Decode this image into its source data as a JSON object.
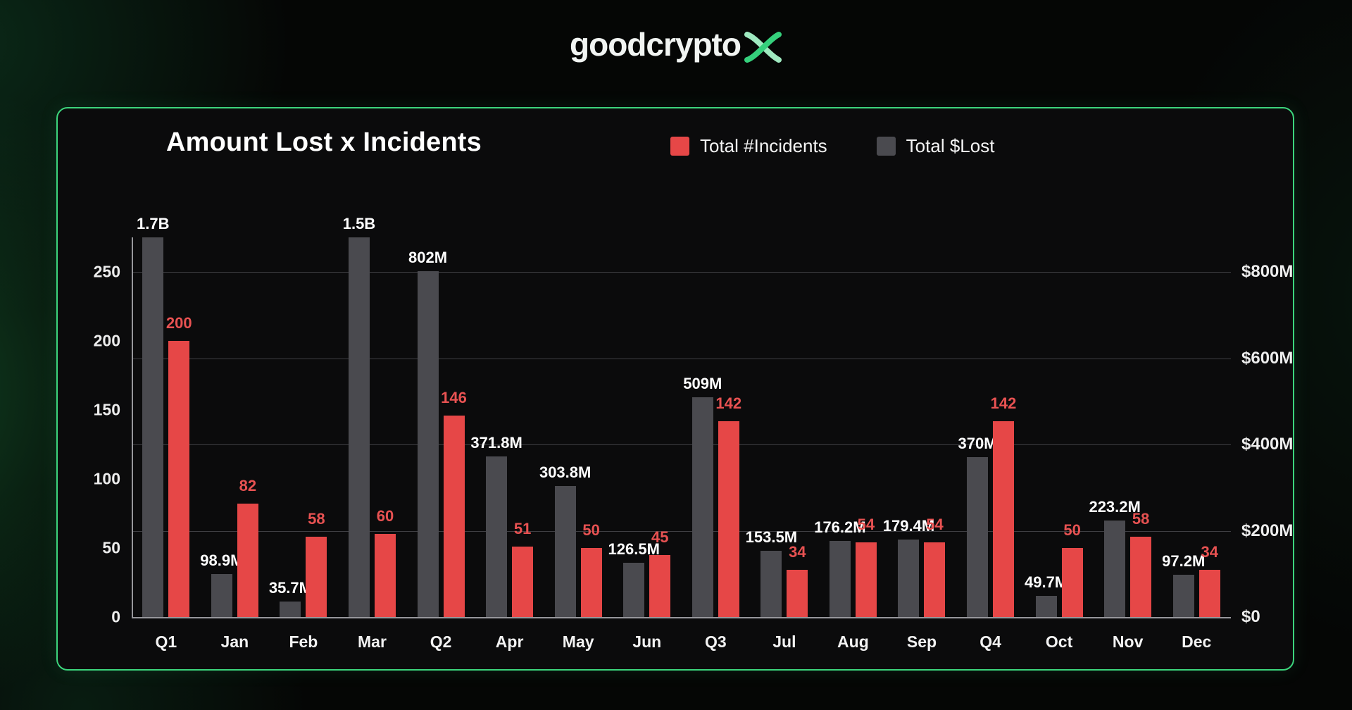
{
  "brand": {
    "wordmark": "goodcrypto",
    "x_icon": "brand-x-icon",
    "accent_green": "#3cd57c"
  },
  "chart_data": {
    "type": "bar",
    "title": "Amount Lost x Incidents",
    "categories": [
      "Q1",
      "Jan",
      "Feb",
      "Mar",
      "Q2",
      "Apr",
      "May",
      "Jun",
      "Q3",
      "Jul",
      "Aug",
      "Sep",
      "Q4",
      "Oct",
      "Nov",
      "Dec"
    ],
    "series": [
      {
        "name": "Total #Incidents",
        "axis": "left",
        "color": "#e64747",
        "values": [
          200,
          82,
          58,
          60,
          146,
          51,
          50,
          45,
          142,
          34,
          54,
          54,
          142,
          50,
          58,
          34
        ]
      },
      {
        "name": "Total $Lost",
        "axis": "right",
        "color": "#4a4a4f",
        "values_musd": [
          1700,
          98.9,
          35.7,
          1500,
          802,
          371.8,
          303.8,
          126.5,
          509,
          153.5,
          176.2,
          179.4,
          370,
          49.7,
          223.2,
          97.2
        ],
        "labels": [
          "1.7B",
          "98.9M",
          "35.7M",
          "1.5B",
          "802M",
          "371.8M",
          "303.8M",
          "126.5M",
          "509M",
          "153.5M",
          "176.2M",
          "179.4M",
          "370M",
          "49.7M",
          "223.2M",
          "97.2M"
        ]
      }
    ],
    "left_axis": {
      "ticks": [
        0,
        50,
        100,
        150,
        200,
        250
      ],
      "plot_max": 275
    },
    "right_axis": {
      "ticks": [
        "$0",
        "$200M",
        "$400M",
        "$600M",
        "$800M"
      ],
      "tick_values": [
        0,
        200,
        400,
        600,
        800
      ],
      "plot_max_musd": 880
    },
    "legend_position": "top",
    "grid": "horizontal",
    "background": "#0b0b0c"
  }
}
